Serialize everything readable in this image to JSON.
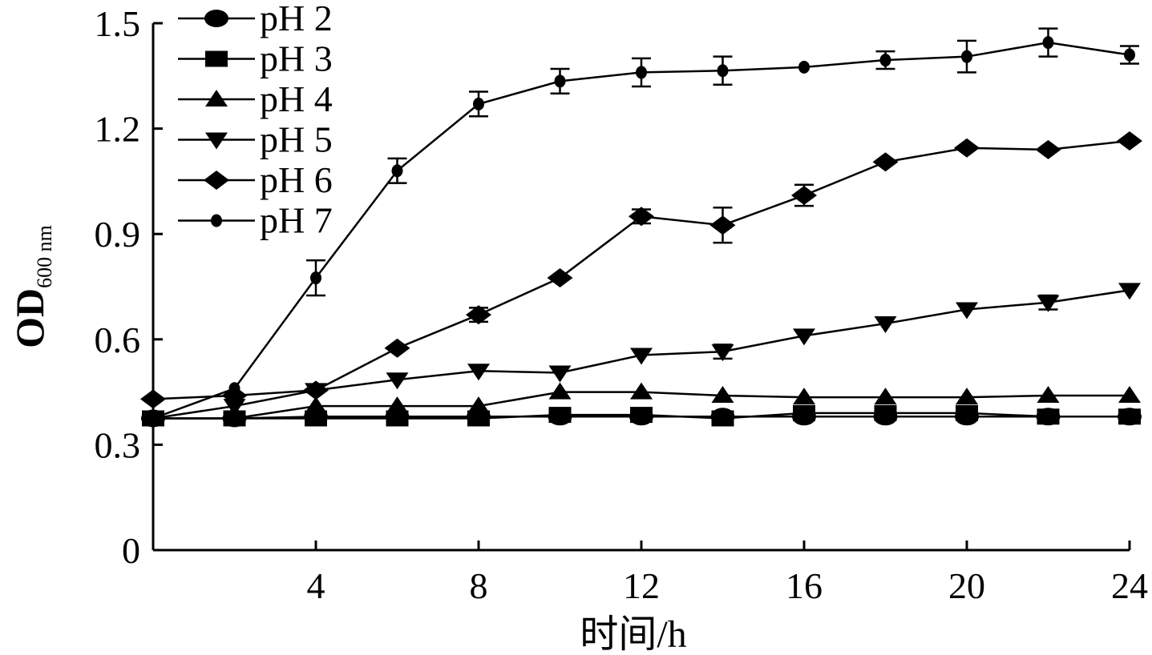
{
  "chart_data": {
    "type": "line",
    "xlabel": "时间/h",
    "ylabel": {
      "main": "OD",
      "subscript": "600 nm"
    },
    "xlim": [
      0,
      24
    ],
    "ylim": [
      0,
      1.5
    ],
    "x_ticks": [
      4,
      8,
      12,
      16,
      20,
      24
    ],
    "y_ticks": [
      0,
      0.3,
      0.6,
      0.9,
      1.2,
      1.5
    ],
    "y_tick_labels": [
      "0",
      "0.3",
      "0.6",
      "0.9",
      "1.2",
      "1.5"
    ],
    "grid": false,
    "legend_position": "top-left",
    "x": [
      0,
      2,
      4,
      6,
      8,
      10,
      12,
      14,
      16,
      18,
      20,
      22,
      24
    ],
    "series": [
      {
        "name": "pH 2",
        "marker": "circle",
        "values": [
          0.375,
          0.375,
          0.38,
          0.38,
          0.38,
          0.38,
          0.38,
          0.38,
          0.38,
          0.38,
          0.38,
          0.38,
          0.38
        ],
        "errors": [
          0,
          0,
          0,
          0,
          0,
          0,
          0,
          0,
          0,
          0,
          0,
          0,
          0
        ]
      },
      {
        "name": "pH 3",
        "marker": "square",
        "values": [
          0.375,
          0.375,
          0.375,
          0.375,
          0.375,
          0.385,
          0.385,
          0.375,
          0.39,
          0.39,
          0.39,
          0.38,
          0.38
        ],
        "errors": [
          0,
          0,
          0,
          0,
          0,
          0,
          0,
          0,
          0,
          0,
          0,
          0,
          0
        ]
      },
      {
        "name": "pH 4",
        "marker": "triangle-up",
        "values": [
          0.375,
          0.375,
          0.41,
          0.41,
          0.41,
          0.45,
          0.45,
          0.44,
          0.435,
          0.435,
          0.435,
          0.44,
          0.44
        ],
        "errors": [
          0,
          0,
          0,
          0,
          0,
          0,
          0,
          0,
          0,
          0,
          0,
          0,
          0
        ]
      },
      {
        "name": "pH 5",
        "marker": "triangle-down",
        "values": [
          0.375,
          0.41,
          0.455,
          0.485,
          0.51,
          0.505,
          0.555,
          0.565,
          0.61,
          0.645,
          0.685,
          0.705,
          0.74
        ],
        "errors": [
          0,
          0,
          0,
          0,
          0,
          0,
          0,
          0.02,
          0,
          0,
          0,
          0.02,
          0
        ]
      },
      {
        "name": "pH 6",
        "marker": "diamond",
        "values": [
          0.43,
          0.44,
          0.455,
          0.575,
          0.67,
          0.775,
          0.95,
          0.925,
          1.01,
          1.105,
          1.145,
          1.14,
          1.165
        ],
        "errors": [
          0,
          0,
          0,
          0,
          0.02,
          0,
          0.02,
          0.05,
          0.03,
          0,
          0,
          0,
          0
        ]
      },
      {
        "name": "pH 7",
        "marker": "dot",
        "values": [
          0.375,
          0.46,
          0.775,
          1.08,
          1.27,
          1.335,
          1.36,
          1.365,
          1.375,
          1.395,
          1.405,
          1.445,
          1.41
        ],
        "errors": [
          0,
          0,
          0.05,
          0.035,
          0.035,
          0.035,
          0.04,
          0.04,
          0,
          0.025,
          0.045,
          0.04,
          0.025
        ]
      }
    ]
  }
}
